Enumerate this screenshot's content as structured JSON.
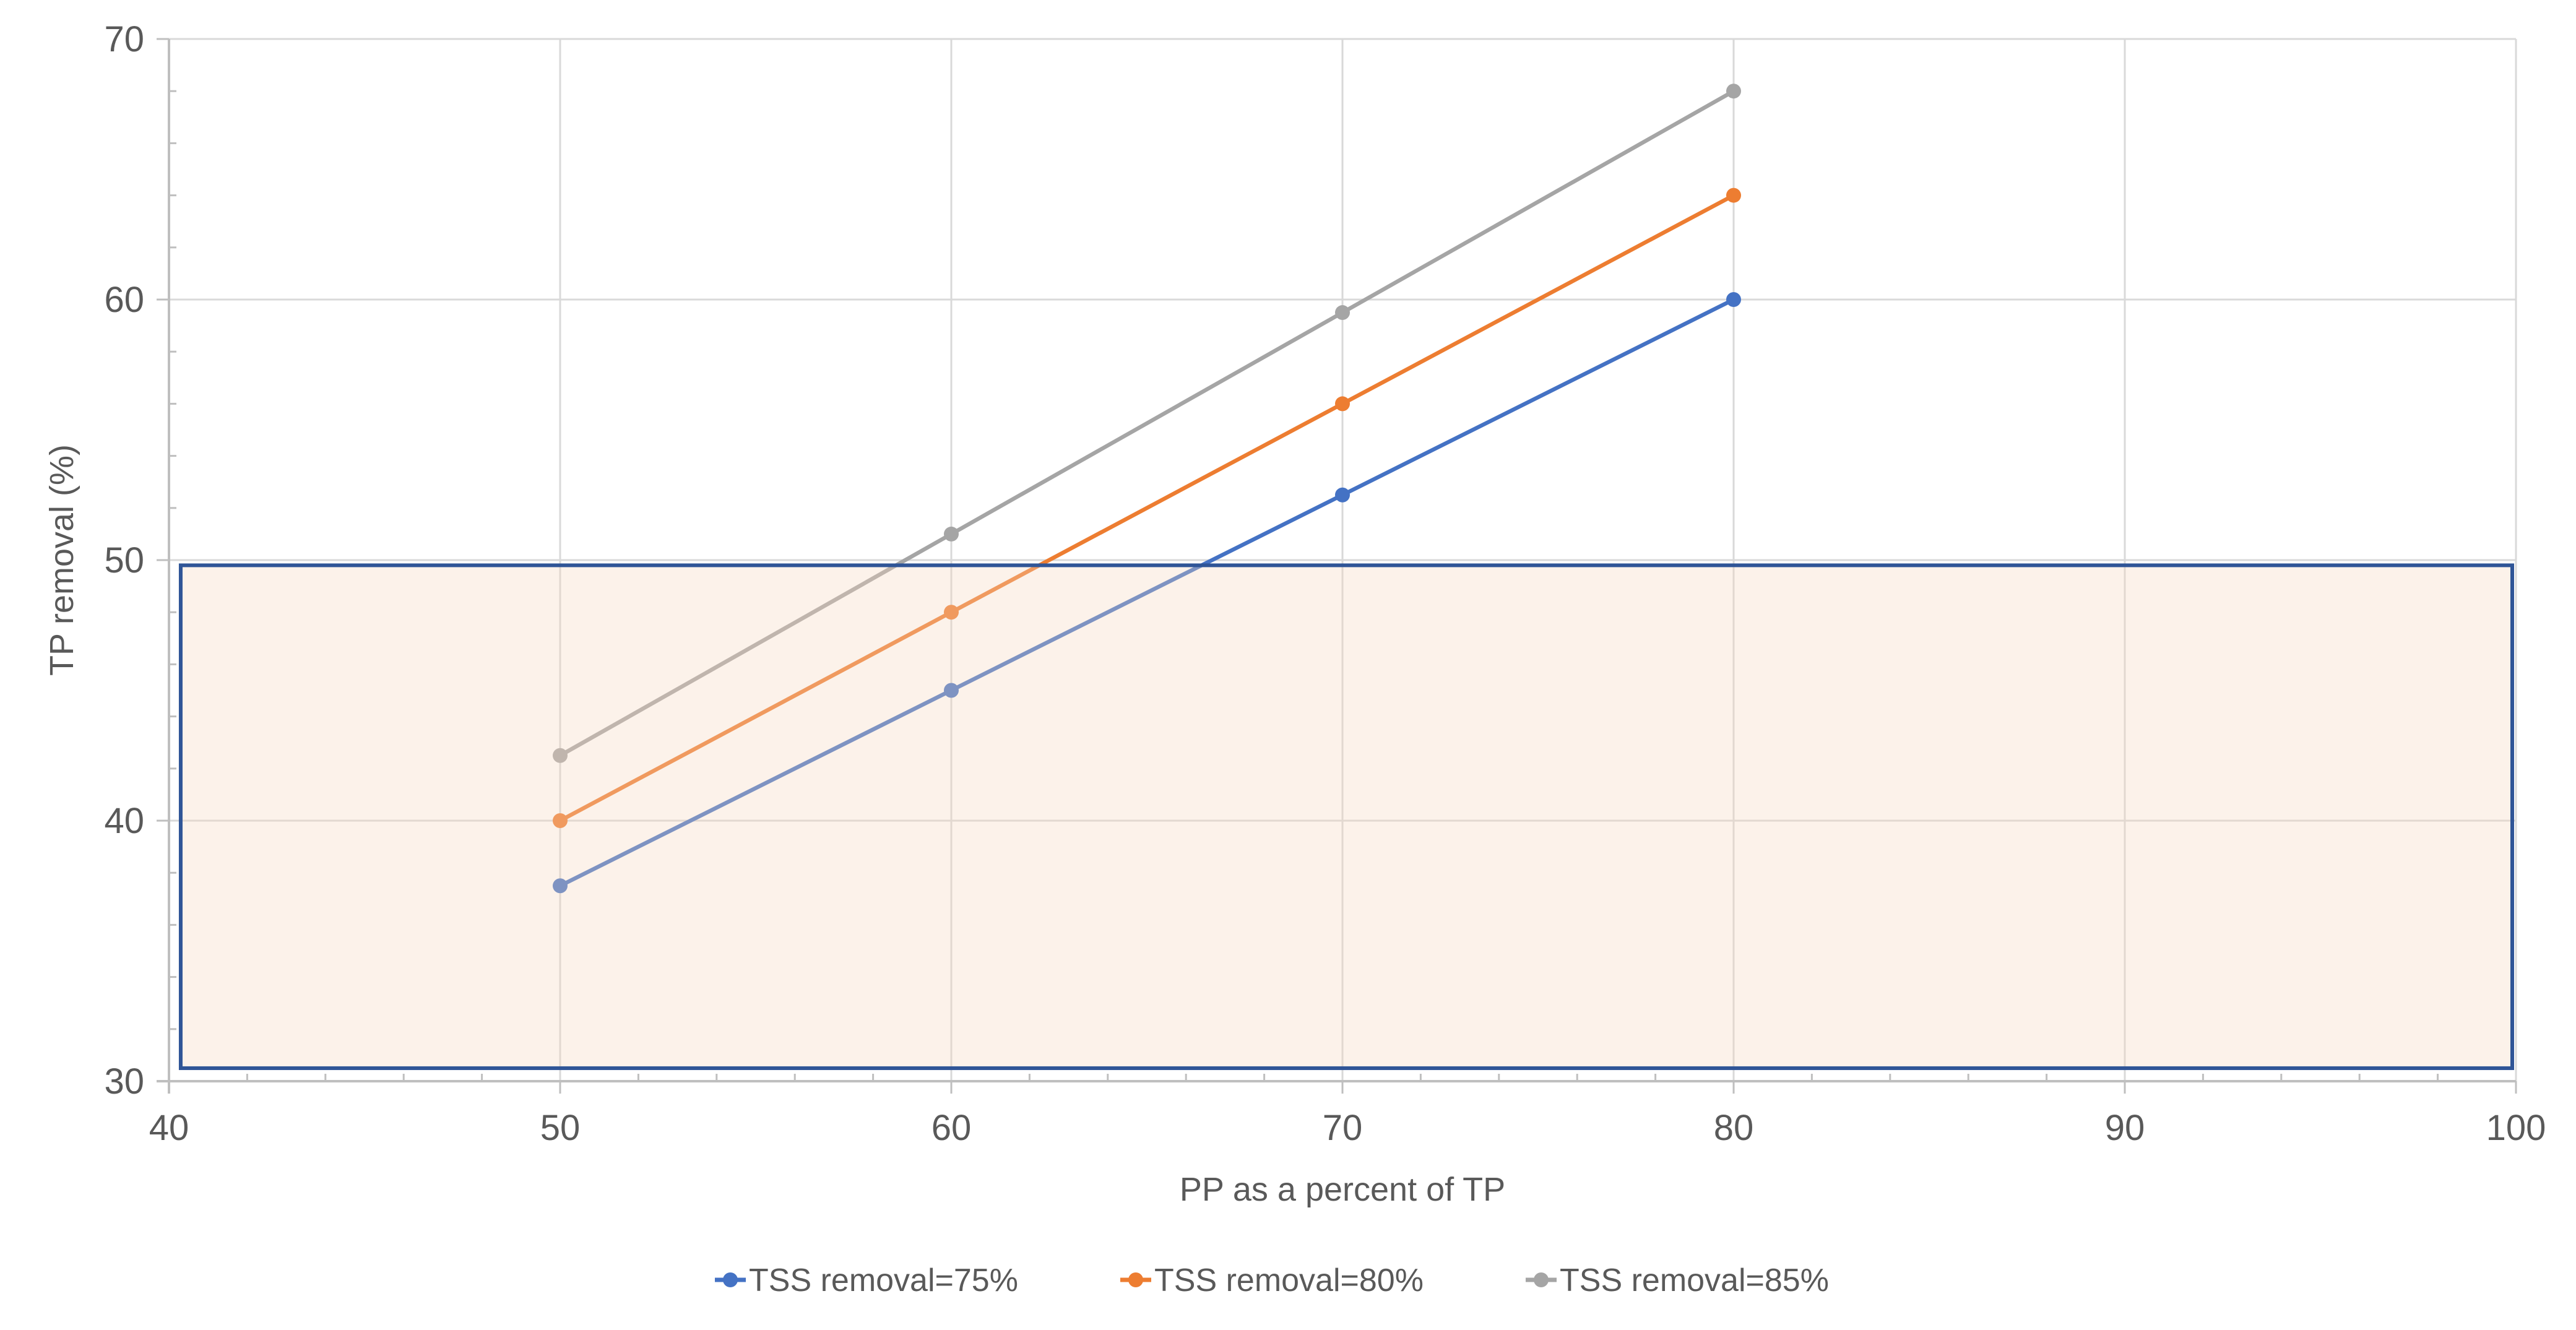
{
  "chart_data": {
    "type": "line",
    "title": "",
    "xlabel": "PP as a percent of TP",
    "ylabel": "TP removal (%)",
    "xlim": [
      40,
      100
    ],
    "ylim": [
      30,
      70
    ],
    "xticks": [
      40,
      50,
      60,
      70,
      80,
      90,
      100
    ],
    "yticks": [
      30,
      40,
      50,
      60,
      70
    ],
    "grid": true,
    "legend_position": "bottom",
    "x": [
      50,
      60,
      70,
      80
    ],
    "series": [
      {
        "name": "TSS removal=75%",
        "color": "#4472C4",
        "values": [
          37.5,
          45,
          52.5,
          60
        ]
      },
      {
        "name": "TSS removal=80%",
        "color": "#ED7D31",
        "values": [
          40,
          48,
          56,
          64
        ]
      },
      {
        "name": "TSS removal=85%",
        "color": "#A5A5A5",
        "values": [
          42.5,
          51,
          59.5,
          68
        ]
      }
    ],
    "highlight_region": {
      "x": [
        40.3,
        100
      ],
      "y": [
        30.5,
        49.8
      ],
      "fill": "#ED7D31",
      "border": "#2F5597"
    }
  }
}
